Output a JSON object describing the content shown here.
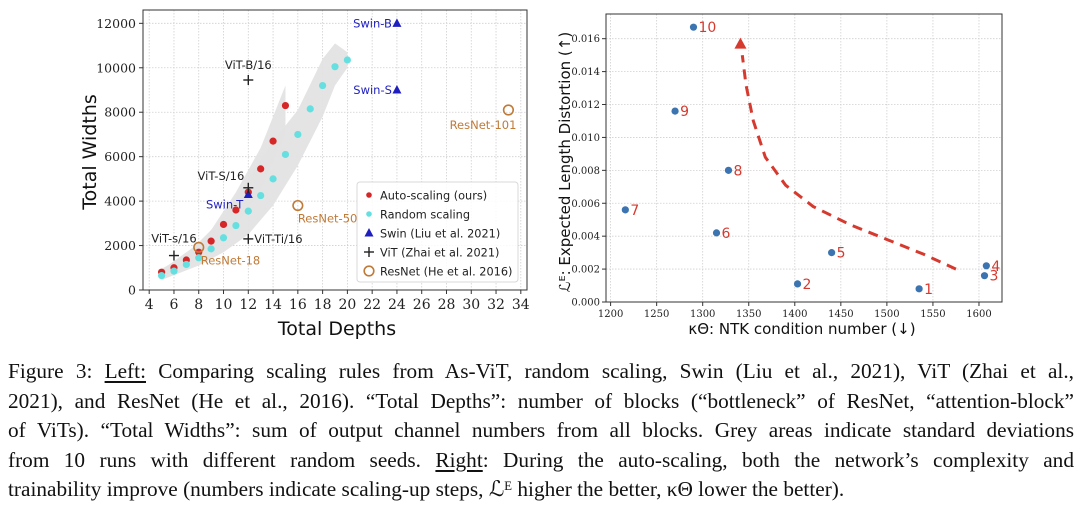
{
  "figure": {
    "caption": {
      "lines": [
        [
          "Figure 3: ",
          {
            "u": "Left:"
          },
          " Comparing scaling rules from As-ViT, random scaling, Swin (Liu et al., 2021), ViT (Zhai et al.,"
        ],
        [
          "2021), and ResNet (He et al., 2016). “Total Depths”: number of blocks (“bottleneck” of ResNet, “attention-block”"
        ],
        [
          "of ViTs). “Total Widths”: sum of output channel numbers from all blocks. Grey areas indicate standard deviations"
        ],
        [
          "from 10 runs with different random seeds. ",
          {
            "u": "Right"
          },
          ": During the auto-scaling, both the network’s complexity and"
        ],
        [
          "trainability improve (numbers indicate scaling-up steps, ℒᴱ higher the better, κΘ lower the better)."
        ]
      ]
    }
  },
  "chart_data": [
    {
      "type": "scatter",
      "title": "",
      "xlabel": "Total Depths",
      "ylabel": "Total Widths",
      "xlim": [
        3.5,
        34.5
      ],
      "ylim": [
        0,
        12600
      ],
      "xticks": [
        4,
        6,
        8,
        10,
        12,
        14,
        16,
        18,
        20,
        22,
        24,
        26,
        28,
        30,
        32,
        34
      ],
      "yticks": [
        0,
        2000,
        4000,
        6000,
        8000,
        10000,
        12000
      ],
      "grid": true,
      "legend_position": "lower-right",
      "colors": {
        "auto": "#d62728",
        "random": "#66dfe0",
        "swin": "#1f1fbf",
        "vit": "#222222",
        "resnet": "#c07a38",
        "band": "#e3e3e3"
      },
      "series": [
        {
          "name": "Auto-scaling (ours)",
          "marker": "dot",
          "color_key": "auto",
          "x": [
            5,
            6,
            7,
            8,
            9,
            10,
            11,
            12,
            13,
            14,
            15
          ],
          "y": [
            800,
            1000,
            1350,
            1700,
            2200,
            2950,
            3600,
            4400,
            5450,
            6700,
            8300
          ]
        },
        {
          "name": "Random scaling",
          "marker": "dot",
          "color_key": "random",
          "x": [
            5,
            6,
            7,
            8,
            9,
            10,
            11,
            12,
            13,
            14,
            15,
            16,
            17,
            18,
            19,
            20
          ],
          "y": [
            650,
            850,
            1150,
            1450,
            1850,
            2350,
            2900,
            3550,
            4250,
            5000,
            6100,
            7000,
            8150,
            9200,
            10050,
            10350
          ]
        },
        {
          "name": "Swin (Liu et al. 2021)",
          "marker": "triangle",
          "color_key": "swin",
          "points": [
            {
              "label": "Swin-T",
              "x": 12,
              "y": 4300
            },
            {
              "label": "Swin-S",
              "x": 24,
              "y": 9000
            },
            {
              "label": "Swin-B",
              "x": 24,
              "y": 12000
            }
          ]
        },
        {
          "name": "ViT (Zhai et al. 2021)",
          "marker": "plus",
          "color_key": "vit",
          "points": [
            {
              "label": "ViT-s/16",
              "x": 6,
              "y": 1550
            },
            {
              "label": "ViT-Ti/16",
              "x": 12,
              "y": 2300
            },
            {
              "label": "ViT-S/16",
              "x": 12,
              "y": 4600
            },
            {
              "label": "ViT-B/16",
              "x": 12,
              "y": 9450
            }
          ]
        },
        {
          "name": "ResNet (He et al. 2016)",
          "marker": "circle-open",
          "color_key": "resnet",
          "points": [
            {
              "label": "ResNet-18",
              "x": 8,
              "y": 1920
            },
            {
              "label": "ResNet-50",
              "x": 16,
              "y": 3800
            },
            {
              "label": "ResNet-101",
              "x": 33,
              "y": 8100
            }
          ]
        }
      ],
      "bands": [
        {
          "name": "auto-std",
          "x": [
            5,
            7,
            9,
            11,
            13,
            14,
            15,
            15,
            14,
            13,
            11,
            9,
            7,
            5
          ],
          "y": [
            950,
            1600,
            2700,
            4400,
            6400,
            7800,
            9200,
            7000,
            5800,
            4500,
            2900,
            1800,
            1100,
            600
          ]
        },
        {
          "name": "random-std",
          "x": [
            5,
            8,
            10,
            12,
            14,
            16,
            18,
            19,
            20,
            20,
            19,
            18,
            16,
            14,
            12,
            10,
            8,
            5
          ],
          "y": [
            900,
            2100,
            3300,
            5000,
            6700,
            8100,
            10400,
            11100,
            10700,
            10000,
            9200,
            7800,
            5600,
            3800,
            2500,
            1700,
            1100,
            450
          ]
        }
      ]
    },
    {
      "type": "scatter",
      "title": "",
      "xlabel": "κΘ: NTK condition number (↓)",
      "ylabel": "ℒᴱ: Expected Length Distortion (↑)",
      "xlim": [
        1195,
        1625
      ],
      "ylim": [
        0,
        0.0175
      ],
      "xticks": [
        1200,
        1250,
        1300,
        1350,
        1400,
        1450,
        1500,
        1550,
        1600
      ],
      "yticks": [
        0.0,
        0.002,
        0.004,
        0.006,
        0.008,
        0.01,
        0.012,
        0.014,
        0.016
      ],
      "ytick_labels": [
        "0.000",
        "0.002",
        "0.004",
        "0.006",
        "0.008",
        "0.010",
        "0.012",
        "0.014",
        "0.016"
      ],
      "grid": true,
      "colors": {
        "point": "#3b74b0",
        "label": "#d63a2f",
        "arrow": "#d63a2f"
      },
      "points": [
        {
          "step": "1",
          "x": 1535,
          "y": 0.0008
        },
        {
          "step": "2",
          "x": 1403,
          "y": 0.0011
        },
        {
          "step": "3",
          "x": 1606,
          "y": 0.0016
        },
        {
          "step": "4",
          "x": 1608,
          "y": 0.0022
        },
        {
          "step": "5",
          "x": 1440,
          "y": 0.003
        },
        {
          "step": "6",
          "x": 1315,
          "y": 0.0042
        },
        {
          "step": "7",
          "x": 1216,
          "y": 0.0056
        },
        {
          "step": "8",
          "x": 1328,
          "y": 0.008
        },
        {
          "step": "9",
          "x": 1270,
          "y": 0.0116
        },
        {
          "step": "10",
          "x": 1290,
          "y": 0.0167
        }
      ],
      "trend_arrow": {
        "x": [
          1575,
          1540,
          1500,
          1460,
          1420,
          1390,
          1368,
          1355,
          1347,
          1343
        ],
        "y": [
          0.002,
          0.0029,
          0.0038,
          0.0047,
          0.0058,
          0.0071,
          0.0088,
          0.011,
          0.0132,
          0.015
        ],
        "style": "dashed"
      }
    }
  ]
}
